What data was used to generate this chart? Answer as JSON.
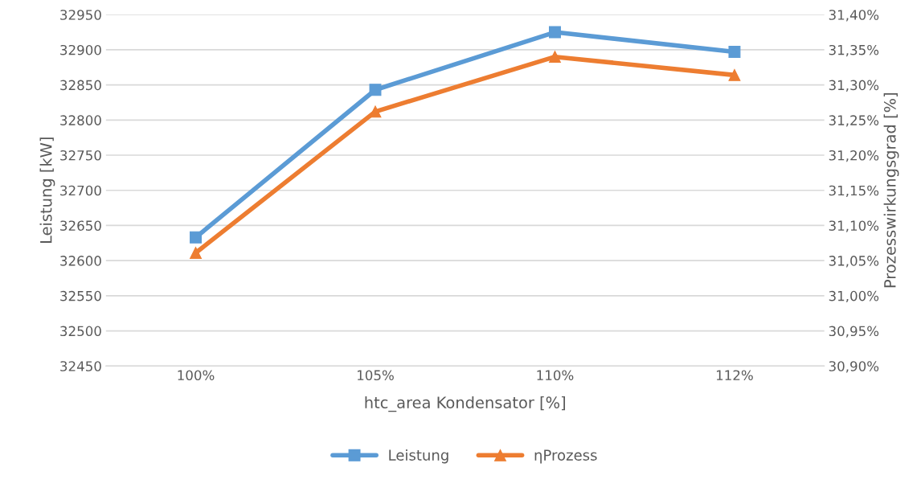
{
  "chart_data": {
    "type": "line",
    "xlabel": "htc_area Kondensator [%]",
    "ylabel": "Leistung [kW]",
    "y2label": "Prozesswirkungsgrad [%]",
    "categories": [
      "100%",
      "105%",
      "110%",
      "112%"
    ],
    "series": [
      {
        "name": "Leistung",
        "color": "#5b9bd5",
        "marker": "square",
        "values": [
          32633,
          32843,
          32925,
          32897
        ]
      },
      {
        "name": "ηProzess",
        "color": "#ed7d31",
        "marker": "triangle",
        "axis": "y2",
        "values": [
          31.061,
          31.262,
          31.34,
          31.314
        ]
      }
    ],
    "ylim": [
      32450,
      32950
    ],
    "yticks": [
      32450,
      32500,
      32550,
      32600,
      32650,
      32700,
      32750,
      32800,
      32850,
      32900,
      32950
    ],
    "y2lim": [
      30.9,
      31.4
    ],
    "y2ticks": [
      {
        "value": 30.9,
        "label": "30,90%"
      },
      {
        "value": 30.95,
        "label": "30,95%"
      },
      {
        "value": 31.0,
        "label": "31,00%"
      },
      {
        "value": 31.05,
        "label": "31,05%"
      },
      {
        "value": 31.1,
        "label": "31,10%"
      },
      {
        "value": 31.15,
        "label": "31,15%"
      },
      {
        "value": 31.2,
        "label": "31,20%"
      },
      {
        "value": 31.25,
        "label": "31,25%"
      },
      {
        "value": 31.3,
        "label": "31,30%"
      },
      {
        "value": 31.35,
        "label": "31,35%"
      },
      {
        "value": 31.4,
        "label": "31,40%"
      }
    ],
    "grid": "y",
    "legend": "bottom",
    "line_style": "solid"
  }
}
